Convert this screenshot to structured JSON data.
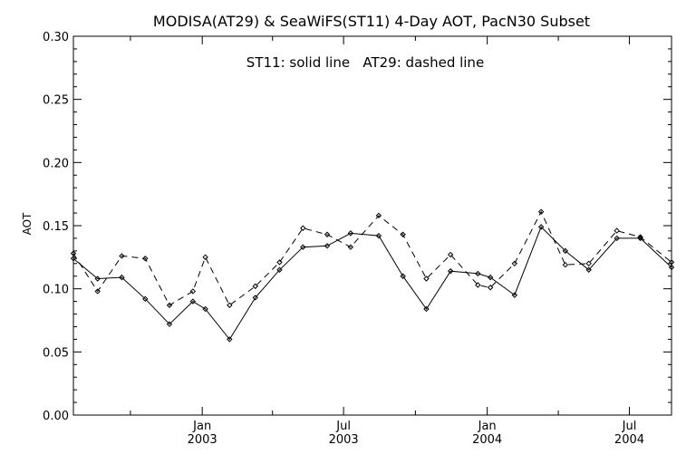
{
  "chart_data": {
    "type": "line",
    "title": "MODISA(AT29) & SeaWiFS(ST11) 4-Day AOT, PacN30 Subset",
    "annotation": "ST11: solid line   AT29: dashed line",
    "xlabel": "",
    "ylabel": "AOT",
    "xlim": [
      "2002-07-20",
      "2004-08-24"
    ],
    "ylim": [
      0.0,
      0.3
    ],
    "yticks": [
      "0.00",
      "0.05",
      "0.10",
      "0.15",
      "0.20",
      "0.25",
      "0.30"
    ],
    "xticks": [
      {
        "date": "2003-01-01",
        "month": "Jan",
        "year": "2003"
      },
      {
        "date": "2003-07-01",
        "month": "Jul",
        "year": "2003"
      },
      {
        "date": "2004-01-01",
        "month": "Jan",
        "year": "2004"
      },
      {
        "date": "2004-07-01",
        "month": "Jul",
        "year": "2004"
      }
    ],
    "grid": false,
    "series": [
      {
        "name": "ST11",
        "style": "solid",
        "points": [
          [
            "2002-07-20",
            0.124
          ],
          [
            "2002-08-20",
            0.108
          ],
          [
            "2002-09-20",
            0.109
          ],
          [
            "2002-10-20",
            0.092
          ],
          [
            "2002-11-20",
            0.072
          ],
          [
            "2002-12-20",
            0.09
          ],
          [
            "2003-01-05",
            0.084
          ],
          [
            "2003-02-05",
            0.06
          ],
          [
            "2003-03-10",
            0.093
          ],
          [
            "2003-04-10",
            0.115
          ],
          [
            "2003-05-10",
            0.133
          ],
          [
            "2003-06-10",
            0.134
          ],
          [
            "2003-07-10",
            0.144
          ],
          [
            "2003-08-15",
            0.142
          ],
          [
            "2003-09-15",
            0.11
          ],
          [
            "2003-10-15",
            0.084
          ],
          [
            "2003-11-15",
            0.114
          ],
          [
            "2003-12-20",
            0.112
          ],
          [
            "2004-01-05",
            0.109
          ],
          [
            "2004-02-05",
            0.095
          ],
          [
            "2004-03-10",
            0.149
          ],
          [
            "2004-04-10",
            0.13
          ],
          [
            "2004-05-10",
            0.115
          ],
          [
            "2004-06-15",
            0.14
          ],
          [
            "2004-07-15",
            0.14
          ],
          [
            "2004-08-24",
            0.117
          ]
        ]
      },
      {
        "name": "AT29",
        "style": "dashed",
        "points": [
          [
            "2002-07-20",
            0.128
          ],
          [
            "2002-08-20",
            0.098
          ],
          [
            "2002-09-20",
            0.126
          ],
          [
            "2002-10-20",
            0.124
          ],
          [
            "2002-11-20",
            0.087
          ],
          [
            "2002-12-20",
            0.098
          ],
          [
            "2003-01-05",
            0.125
          ],
          [
            "2003-02-05",
            0.087
          ],
          [
            "2003-03-10",
            0.102
          ],
          [
            "2003-04-10",
            0.121
          ],
          [
            "2003-05-10",
            0.148
          ],
          [
            "2003-06-10",
            0.143
          ],
          [
            "2003-07-10",
            0.133
          ],
          [
            "2003-08-15",
            0.158
          ],
          [
            "2003-09-15",
            0.143
          ],
          [
            "2003-10-15",
            0.108
          ],
          [
            "2003-11-15",
            0.127
          ],
          [
            "2003-12-20",
            0.103
          ],
          [
            "2004-01-05",
            0.101
          ],
          [
            "2004-02-05",
            0.12
          ],
          [
            "2004-03-10",
            0.161
          ],
          [
            "2004-04-10",
            0.119
          ],
          [
            "2004-05-10",
            0.12
          ],
          [
            "2004-06-15",
            0.146
          ],
          [
            "2004-07-15",
            0.141
          ],
          [
            "2004-08-24",
            0.121
          ]
        ]
      }
    ]
  }
}
